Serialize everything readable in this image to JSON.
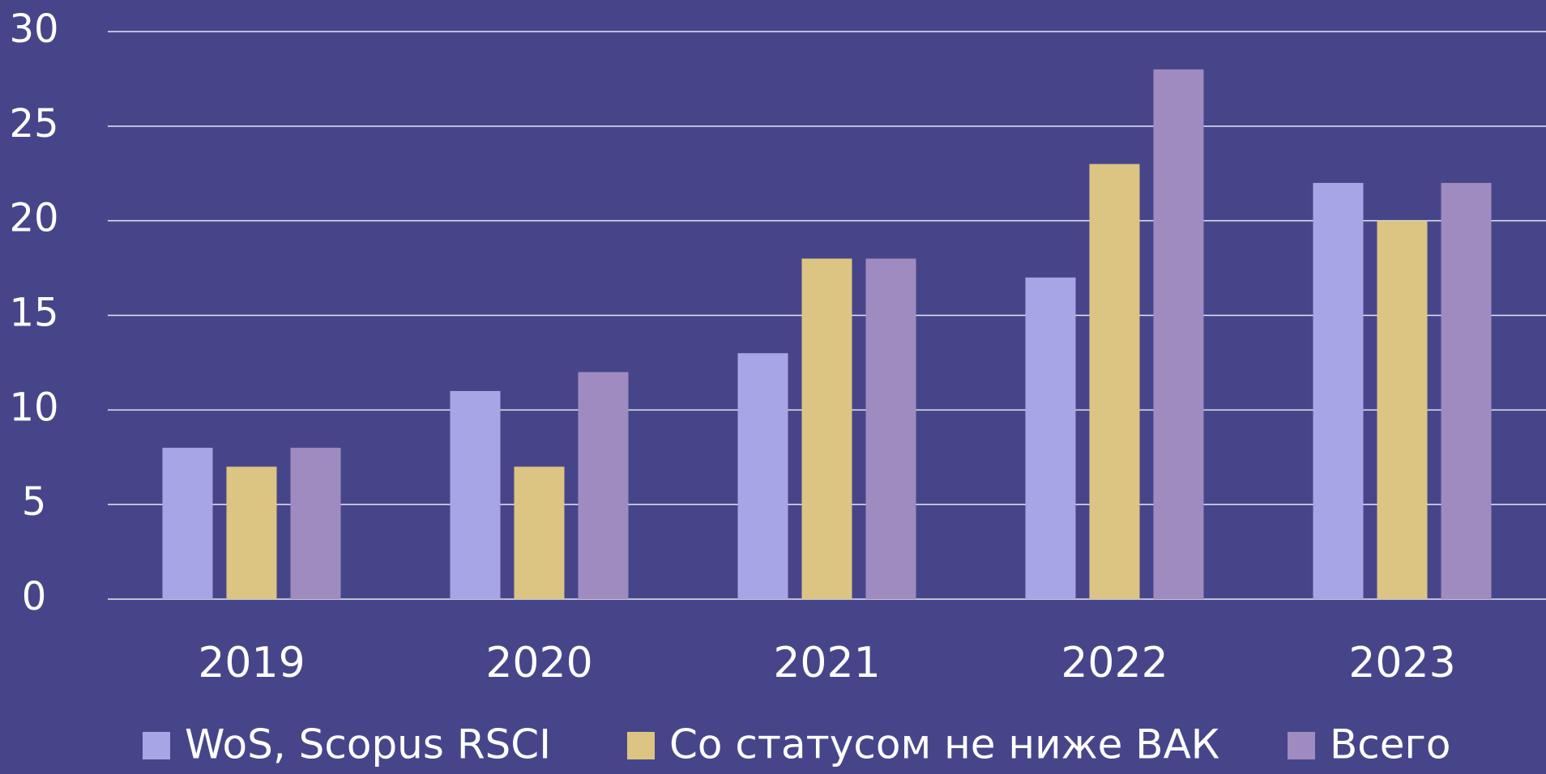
{
  "chart_data": {
    "type": "bar",
    "categories": [
      "2019",
      "2020",
      "2021",
      "2022",
      "2023"
    ],
    "series": [
      {
        "name": "WoS, Scopus RSCI",
        "color": "#a6a6e6",
        "values": [
          8,
          11,
          13,
          17,
          22
        ]
      },
      {
        "name": "Со статусом не ниже ВАК",
        "color": "#dcc583",
        "values": [
          7,
          7,
          18,
          23,
          20
        ]
      },
      {
        "name": "Всего",
        "color": "#a08bc0",
        "values": [
          8,
          12,
          18,
          28,
          22
        ]
      }
    ],
    "ylim": [
      0,
      30
    ],
    "yticks": [
      0,
      5,
      10,
      15,
      20,
      25,
      30
    ],
    "grid": true,
    "legend": "bottom"
  }
}
